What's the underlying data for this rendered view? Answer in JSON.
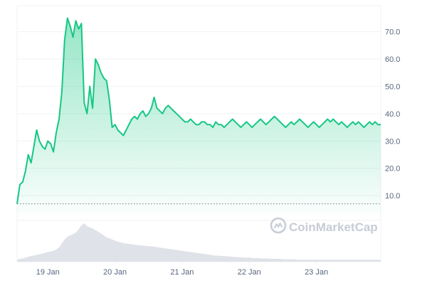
{
  "watermark": {
    "text": "CoinMarketCap",
    "icon": "coinmarketcap-logo-icon"
  },
  "colors": {
    "line": "#16c784",
    "area_top": "#16c784",
    "baseline": "#707a8a",
    "volume": "#dfe2e8",
    "grid": "#eff2f5",
    "tick_text": "#58667e",
    "watermark": "#c7ccd6"
  },
  "chart_data": {
    "type": "area",
    "y_axis": {
      "position": "right",
      "ylim": [
        3.0,
        79.0
      ],
      "ticks": [
        10.0,
        20.0,
        30.0,
        40.0,
        50.0,
        60.0,
        70.0
      ],
      "tick_labels": [
        "10.0",
        "20.0",
        "30.0",
        "40.0",
        "50.0",
        "60.0",
        "70.0"
      ]
    },
    "x_axis": {
      "xlim": [
        "18 Jan 13:00",
        "23 Jan 23:00"
      ],
      "ticks": [
        "19 Jan",
        "20 Jan",
        "21 Jan",
        "22 Jan",
        "23 Jan"
      ]
    },
    "grid": true,
    "baseline": {
      "value": 7.0,
      "style": "dotted"
    },
    "price_series": {
      "x_hours": [
        0,
        1,
        2,
        3,
        4,
        5,
        6,
        7,
        8,
        9,
        10,
        11,
        12,
        13,
        14,
        15,
        16,
        17,
        18,
        19,
        20,
        21,
        22,
        23,
        24,
        25,
        26,
        27,
        28,
        29,
        30,
        31,
        32,
        33,
        34,
        35,
        36,
        37,
        38,
        39,
        40,
        41,
        42,
        43,
        44,
        45,
        46,
        47,
        48,
        49,
        50,
        51,
        52,
        53,
        54,
        55,
        56,
        57,
        58,
        59,
        60,
        61,
        62,
        63,
        64,
        65,
        66,
        67,
        68,
        69,
        70,
        71,
        72,
        73,
        74,
        75,
        76,
        77,
        78,
        79,
        80,
        81,
        82,
        83,
        84,
        85,
        86,
        87,
        88,
        89,
        90,
        91,
        92,
        93,
        94,
        95,
        96,
        97,
        98,
        99,
        100,
        101,
        102,
        103,
        104,
        105,
        106,
        107,
        108,
        109,
        110,
        111,
        112,
        113,
        114,
        115,
        116,
        117,
        118,
        119,
        120,
        121,
        122,
        123,
        124,
        125,
        126,
        127,
        128,
        129,
        130
      ],
      "values": [
        7,
        14,
        15,
        19,
        25,
        22,
        28,
        34,
        30,
        28,
        27,
        30,
        29,
        26,
        33,
        38,
        48,
        67,
        75,
        72,
        68,
        74,
        71,
        73,
        44,
        40,
        50,
        42,
        60,
        58,
        55,
        53,
        52,
        45,
        35,
        36,
        34,
        33,
        32,
        34,
        36,
        38,
        39,
        38,
        40,
        41,
        39,
        40,
        42,
        46,
        42,
        41,
        40,
        42,
        43,
        42,
        41,
        40,
        39,
        38,
        37,
        37,
        38,
        37,
        36,
        36,
        37,
        37,
        36,
        36,
        35,
        37,
        36,
        36,
        35,
        36,
        37,
        38,
        37,
        36,
        35,
        36,
        37,
        36,
        35,
        36,
        37,
        38,
        37,
        36,
        37,
        38,
        39,
        38,
        37,
        36,
        35,
        36,
        37,
        36,
        37,
        38,
        37,
        36,
        35,
        36,
        37,
        36,
        35,
        36,
        37,
        38,
        37,
        38,
        37,
        36,
        37,
        36,
        35,
        36,
        37,
        36,
        37,
        36,
        35,
        36,
        37,
        36,
        37,
        36,
        36
      ]
    },
    "volume_series": {
      "values": [
        0.05,
        0.07,
        0.08,
        0.1,
        0.12,
        0.14,
        0.15,
        0.17,
        0.18,
        0.2,
        0.22,
        0.24,
        0.25,
        0.27,
        0.3,
        0.35,
        0.45,
        0.55,
        0.62,
        0.65,
        0.68,
        0.72,
        0.8,
        0.9,
        0.95,
        0.88,
        0.85,
        0.82,
        0.78,
        0.74,
        0.7,
        0.65,
        0.6,
        0.58,
        0.55,
        0.52,
        0.5,
        0.48,
        0.46,
        0.45,
        0.44,
        0.43,
        0.42,
        0.41,
        0.4,
        0.4,
        0.39,
        0.38,
        0.38,
        0.37,
        0.36,
        0.35,
        0.34,
        0.33,
        0.32,
        0.31,
        0.3,
        0.29,
        0.28,
        0.27,
        0.26,
        0.25,
        0.24,
        0.23,
        0.22,
        0.21,
        0.2,
        0.19,
        0.18,
        0.17,
        0.16,
        0.15,
        0.15,
        0.14,
        0.14,
        0.13,
        0.13,
        0.12,
        0.12,
        0.11,
        0.11,
        0.1,
        0.1,
        0.1,
        0.09,
        0.09,
        0.09,
        0.08,
        0.08,
        0.08,
        0.08,
        0.07,
        0.07,
        0.07,
        0.07,
        0.06,
        0.06,
        0.06,
        0.06,
        0.06,
        0.05,
        0.05,
        0.05,
        0.05,
        0.05,
        0.05,
        0.05,
        0.05,
        0.05,
        0.05,
        0.05,
        0.05,
        0.05,
        0.05,
        0.05,
        0.05,
        0.05,
        0.05,
        0.05,
        0.05,
        0.05,
        0.05,
        0.05,
        0.05,
        0.05,
        0.05,
        0.05,
        0.05,
        0.05,
        0.05,
        0.05
      ]
    }
  }
}
